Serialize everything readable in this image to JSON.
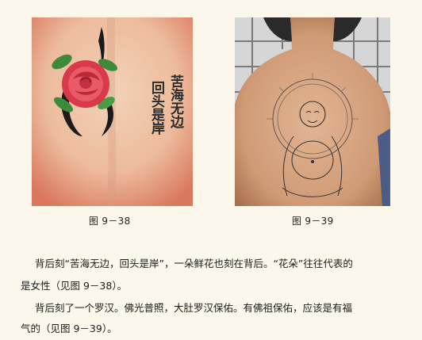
{
  "figures": [
    {
      "caption": "图 9－38",
      "tattoo_text_col1": "回头是岸",
      "tattoo_text_col2": "苦海无边",
      "icon": "rose-tattoo-icon"
    },
    {
      "caption": "图 9－39",
      "icon": "buddha-tattoo-icon"
    }
  ],
  "paragraphs": [
    {
      "line1": "背后刻“苦海无边，回头是岸”，一朵鲜花也刻在背后。“花朵”往往代表的",
      "line2": "是女性（见图 9－38）。"
    },
    {
      "line1": "背后刻了一个罗汉。佛光普照，大肚罗汉保佑。有佛祖保佑，应该是有福",
      "line2": "气的（见图 9－39）。"
    }
  ],
  "colors": {
    "page_background": "#fbf7ea",
    "skin": "#f1c6aa",
    "rose": "#e0424f",
    "leaf": "#3f8a3a",
    "ink": "#2b2b2b"
  }
}
